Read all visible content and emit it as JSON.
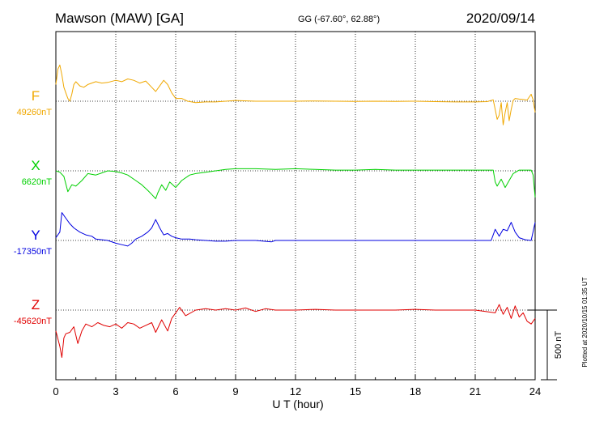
{
  "header": {
    "station": "Mawson (MAW)  [GA]",
    "coords": "GG (-67.60°,  62.88°)",
    "date": "2020/09/14"
  },
  "chart_data": {
    "type": "line",
    "xlabel": "U T (hour)",
    "xlim": [
      0,
      24
    ],
    "x_ticks": [
      0,
      3,
      6,
      9,
      12,
      15,
      18,
      21,
      24
    ],
    "x_tick_labels": [
      "0",
      "3",
      "6",
      "9",
      "12",
      "15",
      "18",
      "21",
      "24"
    ],
    "grid": true,
    "scale_bar": {
      "label": "500 nT",
      "value_nT": 500
    },
    "footnote": "Plotted at 2020/10/15 01:35 UT",
    "series": [
      {
        "name": "F",
        "baseline_label": "49260nT",
        "baseline_nT": 49260,
        "color": "#f0a800",
        "x": [
          0,
          0.1,
          0.2,
          0.3,
          0.4,
          0.5,
          0.6,
          0.7,
          0.8,
          0.9,
          1,
          1.2,
          1.4,
          1.6,
          1.8,
          2,
          2.3,
          2.6,
          3,
          3.3,
          3.6,
          3.9,
          4.2,
          4.5,
          4.8,
          5,
          5.2,
          5.4,
          5.6,
          5.8,
          6,
          6.3,
          6.6,
          7,
          7.5,
          8,
          8.5,
          9,
          10,
          11,
          12,
          13,
          14,
          15,
          16,
          17,
          18,
          19,
          20,
          21,
          21.6,
          21.9,
          22,
          22.1,
          22.2,
          22.3,
          22.4,
          22.5,
          22.6,
          22.7,
          22.8,
          22.9,
          23,
          23.2,
          23.4,
          23.6,
          23.8,
          23.9,
          24
        ],
        "y_offset_nT": [
          120,
          230,
          260,
          190,
          100,
          60,
          20,
          0,
          50,
          120,
          140,
          110,
          100,
          120,
          130,
          140,
          130,
          135,
          150,
          140,
          160,
          150,
          130,
          145,
          100,
          70,
          110,
          150,
          120,
          60,
          20,
          20,
          0,
          -10,
          -5,
          -5,
          0,
          5,
          0,
          0,
          0,
          2,
          0,
          -2,
          0,
          -2,
          0,
          -3,
          -5,
          -5,
          -3,
          10,
          -60,
          -130,
          -100,
          -10,
          -170,
          -80,
          -10,
          -140,
          -60,
          5,
          20,
          15,
          12,
          8,
          50,
          10,
          -80
        ]
      },
      {
        "name": "X",
        "baseline_label": "6620nT",
        "baseline_nT": 6620,
        "color": "#00d000",
        "x": [
          0,
          0.2,
          0.4,
          0.6,
          0.8,
          1,
          1.3,
          1.6,
          2,
          2.3,
          2.6,
          3,
          3.3,
          3.6,
          4,
          4.3,
          4.6,
          4.8,
          5,
          5.1,
          5.3,
          5.5,
          5.7,
          6,
          6.3,
          6.7,
          7,
          7.5,
          8,
          8.5,
          9,
          10,
          11,
          12,
          13,
          14,
          15,
          16,
          17,
          18,
          19,
          20,
          21,
          21.5,
          21.9,
          22,
          22.1,
          22.3,
          22.5,
          22.7,
          22.9,
          23.2,
          23.5,
          23.8,
          23.9,
          24
        ],
        "y_offset_nT": [
          0,
          -10,
          -40,
          -150,
          -100,
          -110,
          -70,
          -20,
          -30,
          -15,
          0,
          -5,
          -15,
          -30,
          -70,
          -100,
          -140,
          -170,
          -200,
          -160,
          -100,
          -140,
          -80,
          -120,
          -70,
          -30,
          -20,
          -10,
          0,
          10,
          15,
          15,
          10,
          15,
          10,
          5,
          5,
          10,
          5,
          5,
          5,
          5,
          5,
          5,
          5,
          -80,
          -110,
          -60,
          -120,
          -70,
          -20,
          5,
          5,
          5,
          -30,
          -190
        ]
      },
      {
        "name": "Y",
        "baseline_label": "-17350nT",
        "baseline_nT": -17350,
        "color": "#0000e0",
        "x": [
          0,
          0.2,
          0.3,
          0.5,
          0.7,
          0.9,
          1.2,
          1.5,
          1.8,
          2,
          2.3,
          2.6,
          3,
          3.3,
          3.6,
          3.8,
          4,
          4.3,
          4.6,
          4.8,
          5,
          5.2,
          5.4,
          5.6,
          5.8,
          6,
          6.3,
          6.7,
          7,
          7.5,
          8,
          8.5,
          9,
          10,
          10.8,
          11,
          12,
          13,
          14,
          15,
          16,
          17,
          18,
          19,
          20,
          21,
          21.8,
          22,
          22.2,
          22.4,
          22.6,
          22.8,
          23,
          23.2,
          23.5,
          23.8,
          24
        ],
        "y_offset_nT": [
          20,
          60,
          200,
          160,
          120,
          90,
          60,
          40,
          30,
          10,
          5,
          0,
          -20,
          -30,
          -40,
          -20,
          10,
          30,
          60,
          90,
          150,
          90,
          40,
          50,
          30,
          20,
          10,
          10,
          5,
          0,
          -5,
          -5,
          0,
          0,
          -10,
          0,
          0,
          0,
          0,
          0,
          0,
          0,
          0,
          0,
          0,
          0,
          0,
          80,
          30,
          80,
          70,
          130,
          60,
          20,
          5,
          0,
          130
        ]
      },
      {
        "name": "Z",
        "baseline_label": "-45620nT",
        "baseline_nT": -45620,
        "color": "#e00000",
        "x": [
          0,
          0.2,
          0.3,
          0.4,
          0.5,
          0.7,
          0.9,
          1.1,
          1.3,
          1.5,
          1.8,
          2.1,
          2.4,
          2.7,
          3,
          3.3,
          3.6,
          3.9,
          4.2,
          4.5,
          4.8,
          5,
          5.3,
          5.6,
          5.8,
          6,
          6.2,
          6.5,
          7,
          7.5,
          8,
          8.5,
          9,
          9.5,
          10,
          10.5,
          11,
          12,
          13,
          14,
          15,
          16,
          17,
          18,
          19,
          20,
          21,
          22,
          22.2,
          22.4,
          22.6,
          22.8,
          23,
          23.2,
          23.4,
          23.6,
          23.8,
          24
        ],
        "y_offset_nT": [
          -150,
          -260,
          -340,
          -200,
          -170,
          -160,
          -120,
          -240,
          -150,
          -100,
          -120,
          -90,
          -110,
          -120,
          -100,
          -130,
          -90,
          -100,
          -130,
          -110,
          -90,
          -160,
          -70,
          -150,
          -60,
          -20,
          20,
          -40,
          0,
          10,
          0,
          10,
          0,
          15,
          -10,
          10,
          0,
          0,
          5,
          0,
          0,
          0,
          0,
          5,
          0,
          0,
          0,
          -20,
          40,
          -30,
          20,
          -60,
          30,
          -50,
          -20,
          -80,
          -100,
          -60
        ]
      }
    ]
  }
}
